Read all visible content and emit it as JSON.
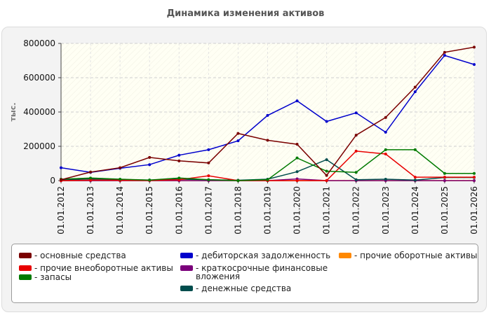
{
  "chart_data": {
    "type": "line",
    "title": "Динамика изменения активов",
    "ylabel": "тыс.",
    "xlabel": "",
    "ylim": [
      0,
      800000
    ],
    "yticks": [
      "0",
      "200000",
      "400000",
      "600000",
      "800000"
    ],
    "ytick_values": [
      0,
      200000,
      400000,
      600000,
      800000
    ],
    "grid": true,
    "legend_position": "bottom",
    "categories": [
      "01.01.2012",
      "01.01.2013",
      "01.01.2014",
      "01.01.2015",
      "01.01.2016",
      "01.01.2017",
      "01.01.2018",
      "01.01.2019",
      "01.01.2020",
      "01.01.2021",
      "01.01.2022",
      "01.01.2023",
      "01.01.2024",
      "01.01.2025",
      "01.01.2026"
    ],
    "series": [
      {
        "name": "- основные средства",
        "color": "#7a0000",
        "values": [
          5000,
          50000,
          75000,
          135000,
          115000,
          103000,
          275000,
          235000,
          212000,
          30000,
          265000,
          368000,
          545000,
          748000,
          778000
        ]
      },
      {
        "name": "- прочие внеоборотные активы",
        "color": "#e80000",
        "values": [
          0,
          3000,
          2000,
          1000,
          5000,
          28000,
          0,
          0,
          0,
          0,
          172000,
          155000,
          20000,
          20000,
          20000
        ]
      },
      {
        "name": "- запасы",
        "color": "#007a00",
        "values": [
          8000,
          15000,
          8000,
          3000,
          15000,
          5000,
          0,
          5000,
          132000,
          55000,
          48000,
          180000,
          180000,
          42000,
          42000
        ]
      },
      {
        "name": "- дебиторская задолженность",
        "color": "#0000cc",
        "values": [
          75000,
          48000,
          72000,
          93000,
          148000,
          180000,
          232000,
          380000,
          465000,
          345000,
          395000,
          282000,
          518000,
          730000,
          677000
        ]
      },
      {
        "name": "- краткосрочные финансовые\nвложения",
        "color": "#7a007a",
        "values": [
          0,
          0,
          0,
          0,
          0,
          0,
          0,
          0,
          10000,
          0,
          0,
          0,
          0,
          0,
          0
        ]
      },
      {
        "name": "- денежные средства",
        "color": "#004d4d",
        "values": [
          3000,
          10000,
          5000,
          3000,
          8000,
          5000,
          2000,
          8000,
          52000,
          122000,
          5000,
          8000,
          3000,
          18000,
          18000
        ]
      },
      {
        "name": "- прочие оборотные активы",
        "color": "#ff8800",
        "values": [
          0,
          0,
          0,
          0,
          0,
          0,
          0,
          0,
          0,
          0,
          0,
          0,
          0,
          0,
          0
        ]
      }
    ]
  }
}
